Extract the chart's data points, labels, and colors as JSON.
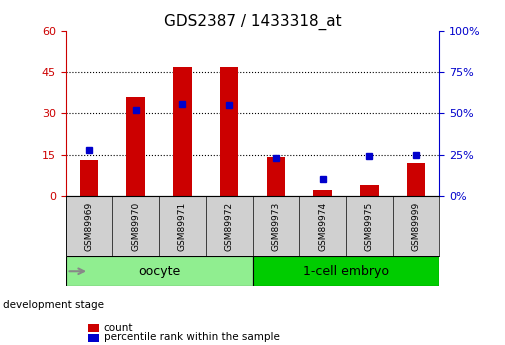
{
  "title": "GDS2387 / 1433318_at",
  "samples": [
    "GSM89969",
    "GSM89970",
    "GSM89971",
    "GSM89972",
    "GSM89973",
    "GSM89974",
    "GSM89975",
    "GSM89999"
  ],
  "count_values": [
    13,
    36,
    47,
    47,
    14,
    2,
    4,
    12
  ],
  "percentile_values": [
    28,
    52,
    56,
    55,
    23,
    10,
    24,
    25
  ],
  "groups": [
    {
      "label": "oocyte",
      "indices": [
        0,
        1,
        2,
        3
      ],
      "color": "#90ee90"
    },
    {
      "label": "1-cell embryo",
      "indices": [
        4,
        5,
        6,
        7
      ],
      "color": "#00cc00"
    }
  ],
  "bar_color": "#cc0000",
  "dot_color": "#0000cc",
  "left_axis_color": "#cc0000",
  "right_axis_color": "#0000cc",
  "left_yticks": [
    0,
    15,
    30,
    45,
    60
  ],
  "right_yticks": [
    0,
    25,
    50,
    75,
    100
  ],
  "left_ylim": [
    0,
    60
  ],
  "right_ylim": [
    0,
    100
  ],
  "grid_yticks": [
    15,
    30,
    45
  ],
  "bar_width": 0.4,
  "title_fontsize": 11,
  "tick_fontsize": 8,
  "bg_color": "#ffffff",
  "plot_bg_color": "#ffffff",
  "group_label_fontsize": 9,
  "sample_label_area_color": "#d0d0d0",
  "development_stage_label": "development stage",
  "legend_items": [
    {
      "label": "count",
      "color": "#cc0000"
    },
    {
      "label": "percentile rank within the sample",
      "color": "#0000cc"
    }
  ]
}
